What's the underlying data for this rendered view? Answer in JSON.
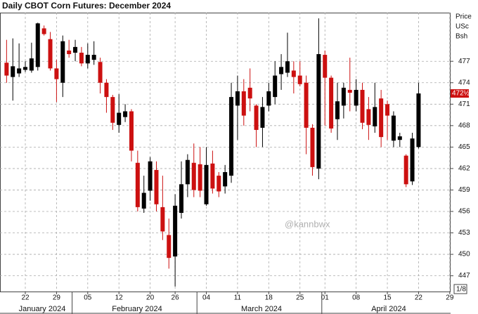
{
  "chart_data": {
    "type": "candlestick",
    "title": "Daily CBOT Corn Futures: December 2024",
    "axis_label": [
      "Price",
      "USc",
      "Bsh"
    ],
    "scale_note": "1/8",
    "watermark": "@kannbwx",
    "categories": [
      null,
      null,
      null,
      "22",
      null,
      null,
      null,
      null,
      "29",
      null,
      null,
      null,
      null,
      "05",
      null,
      null,
      null,
      null,
      "12",
      null,
      null,
      null,
      null,
      "20",
      null,
      null,
      null,
      "26",
      null,
      null,
      null,
      null,
      "04",
      null,
      null,
      null,
      null,
      "11",
      null,
      null,
      null,
      null,
      "18",
      null,
      null,
      null,
      null,
      "25",
      null,
      null,
      null,
      "01",
      null,
      null,
      null,
      null,
      "08",
      null,
      null,
      null,
      null,
      "15",
      null,
      null,
      null,
      null,
      "22",
      null,
      null,
      null,
      null,
      "29"
    ],
    "months": [
      "January 2024",
      "February 2024",
      "March 2024",
      "April 2024"
    ],
    "open": [
      476.8,
      474.8,
      475.3,
      475.8,
      475.7,
      476.2,
      481.6,
      480.1,
      476,
      474,
      478.5,
      478.2,
      478.2,
      476.7,
      477.2,
      476.9,
      474,
      472,
      468.1,
      469.2,
      470,
      462.8,
      456.4,
      458.9,
      461.8,
      456.6,
      452.7,
      449.7,
      455.8,
      459.8,
      462.8,
      462.6,
      457,
      462.7,
      461,
      459.5,
      461,
      470.8,
      472.8,
      473.3,
      470.8,
      467.7,
      470.8,
      472,
      475.2,
      475.4,
      475.7,
      475,
      474,
      467.7,
      462,
      477.9,
      474.7,
      468.9,
      470.8,
      473,
      470.8,
      473,
      470.3,
      467.9,
      471.8,
      471,
      465.9,
      466,
      463.8,
      460.2,
      465,
      null,
      null,
      null,
      null,
      null
    ],
    "high": [
      480,
      480.2,
      479.5,
      477,
      479.6,
      482.4,
      482,
      481.1,
      477.2,
      480.6,
      480,
      480,
      479,
      479.5,
      479.8,
      477.5,
      474.5,
      472.3,
      472.4,
      471,
      470.3,
      464.5,
      461,
      463.6,
      463,
      461,
      455,
      458.4,
      463,
      464,
      465.5,
      465,
      465,
      464.5,
      461.5,
      462.5,
      474,
      475,
      474.5,
      476,
      471,
      472,
      474,
      477,
      478,
      481,
      477,
      477,
      475,
      468.2,
      483,
      478.5,
      475,
      474,
      474,
      477.5,
      474.5,
      474,
      472,
      474,
      473,
      471.5,
      470,
      467,
      464,
      467,
      474,
      null,
      null,
      null,
      null,
      null
    ],
    "low": [
      474,
      471.5,
      474.8,
      475.5,
      475.4,
      475.7,
      480.6,
      475.7,
      471.3,
      472,
      477.5,
      477,
      476.3,
      476,
      476.5,
      472.5,
      469.8,
      467.4,
      467,
      468.5,
      463,
      456,
      455.8,
      457.5,
      456,
      452,
      448,
      445.5,
      455,
      458,
      458,
      458,
      456.8,
      458.5,
      458,
      458.5,
      460,
      466,
      468,
      470,
      465,
      465,
      470,
      471,
      473,
      474.8,
      472.5,
      473.5,
      464,
      461,
      460.5,
      468,
      467,
      466,
      469,
      470,
      470,
      467.5,
      466,
      467,
      465,
      466,
      465,
      465,
      459.4,
      459.7,
      464.8,
      null,
      null,
      null,
      null,
      null
    ],
    "close": [
      475,
      476.3,
      476,
      476.2,
      477.4,
      482.3,
      480.8,
      476,
      474.5,
      479.8,
      478,
      479,
      476.7,
      477.9,
      477.9,
      474,
      472,
      468.4,
      469.8,
      470,
      464.5,
      456.6,
      458.6,
      463,
      457,
      453.2,
      449.5,
      456.8,
      459.8,
      463.2,
      459,
      458.9,
      462.5,
      459.2,
      458.8,
      461.5,
      472,
      472.8,
      469.4,
      471.8,
      467.4,
      470.6,
      472.8,
      475,
      476.2,
      477,
      474.8,
      473.8,
      467.7,
      462.2,
      478,
      474.7,
      467.6,
      471.4,
      473.3,
      472.6,
      473,
      468.4,
      468.1,
      470.6,
      466.4,
      469.4,
      469.4,
      466.5,
      459.8,
      466.2,
      472.5,
      null,
      null,
      null,
      null,
      null
    ],
    "up_color": "#000000",
    "down_color": "#cc1010",
    "last_price": {
      "value": 472.5,
      "label": "472½"
    },
    "ylim": [
      444.8,
      483.8
    ],
    "yticks": [
      447,
      450,
      453,
      456,
      459,
      462,
      465,
      468,
      471,
      474,
      477
    ],
    "grid": true
  }
}
